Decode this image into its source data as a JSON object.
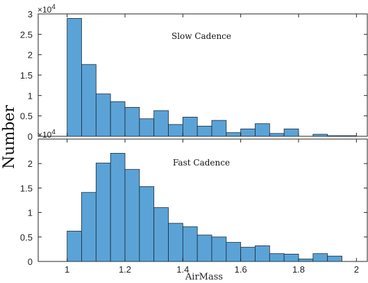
{
  "figure": {
    "ylabel": "Number",
    "xlabel": "AirMass"
  },
  "chart_data": [
    {
      "type": "bar",
      "title": "Slow Cadence",
      "xlim": [
        0.9,
        2.04
      ],
      "ylim": [
        0,
        30000
      ],
      "exponent_label": "×10",
      "exponent_power": "4",
      "yticks": [
        0,
        0.5,
        1,
        1.5,
        2,
        2.5,
        3
      ],
      "ytick_labels": [
        "0",
        "0.5",
        "1",
        "1.5",
        "2",
        "2.5",
        "3"
      ],
      "bin_edges": [
        1.0,
        1.05,
        1.1,
        1.15,
        1.2,
        1.25,
        1.3,
        1.35,
        1.4,
        1.45,
        1.5,
        1.55,
        1.6,
        1.65,
        1.7,
        1.75,
        1.8,
        1.85,
        1.9,
        1.95,
        2.0
      ],
      "values": [
        28900,
        17600,
        10400,
        8500,
        7100,
        4300,
        6300,
        2900,
        4700,
        2500,
        3900,
        900,
        1800,
        3100,
        700,
        1800,
        0,
        500,
        150,
        150
      ],
      "color": "#5ba3d6",
      "edge_color": "#1a2a3a"
    },
    {
      "type": "bar",
      "title": "Fast Cadence",
      "xlim": [
        0.9,
        2.04
      ],
      "ylim": [
        0,
        25000
      ],
      "exponent_label": "×10",
      "exponent_power": "4",
      "yticks": [
        0,
        0.5,
        1,
        1.5,
        2
      ],
      "ytick_labels": [
        "0",
        "0.5",
        "1",
        "1.5",
        "2"
      ],
      "xticks": [
        1,
        1.2,
        1.4,
        1.6,
        1.8,
        2
      ],
      "xtick_labels": [
        "1",
        "1.2",
        "1.4",
        "1.6",
        "1.8",
        "2"
      ],
      "bin_edges": [
        1.0,
        1.05,
        1.1,
        1.15,
        1.2,
        1.25,
        1.3,
        1.35,
        1.4,
        1.45,
        1.5,
        1.55,
        1.6,
        1.65,
        1.7,
        1.75,
        1.8,
        1.85,
        1.9,
        1.95
      ],
      "values": [
        6200,
        14100,
        20100,
        22100,
        18800,
        15300,
        11000,
        7800,
        7100,
        5400,
        5000,
        3900,
        2900,
        3200,
        1600,
        1500,
        500,
        1600,
        1100
      ],
      "color": "#5ba3d6",
      "edge_color": "#1a2a3a"
    }
  ]
}
